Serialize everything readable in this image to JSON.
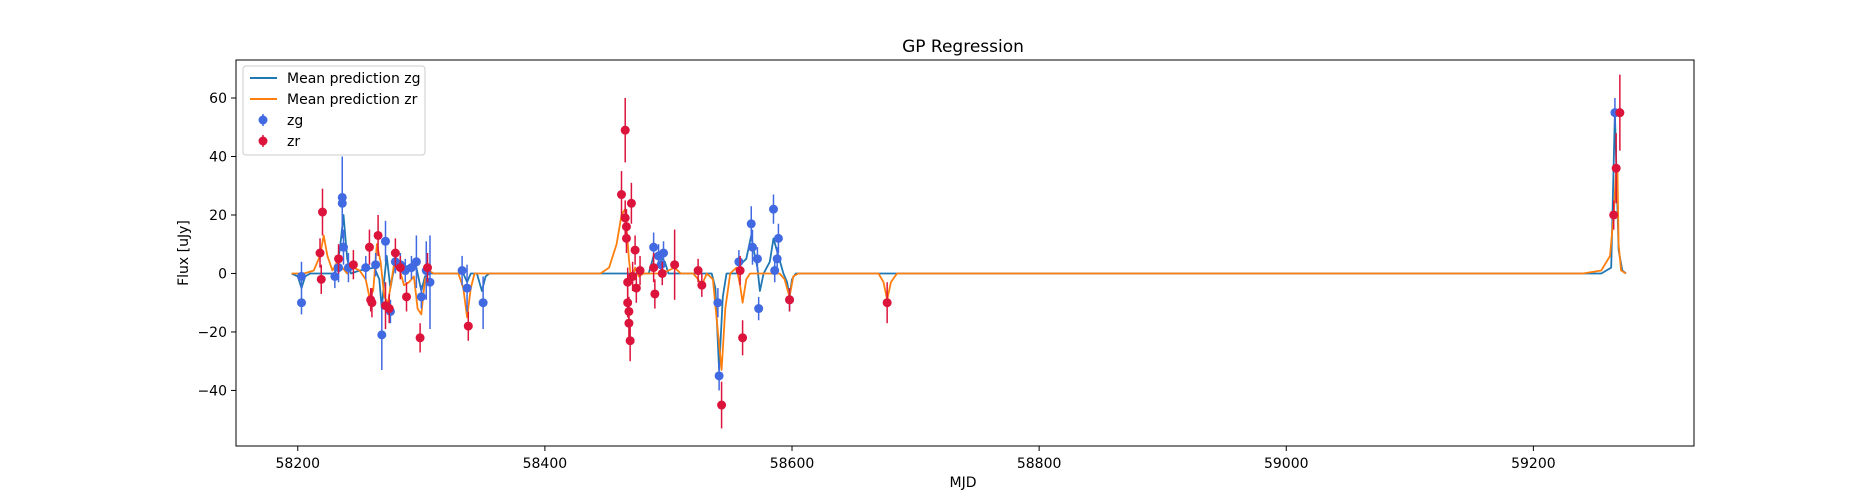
{
  "chart_data": {
    "type": "scatter",
    "title": "GP Regression",
    "xlabel": "MJD",
    "ylabel": "Flux [uJy]",
    "xlim": [
      58150,
      59330
    ],
    "ylim": [
      -59,
      73
    ],
    "xticks": [
      58200,
      58400,
      58600,
      58800,
      59000,
      59200
    ],
    "yticks": [
      -40,
      -20,
      0,
      20,
      40,
      60
    ],
    "grid": false,
    "legend_position": "top-left",
    "colors": {
      "zg_points": "#4169e1",
      "zr_points": "#dc143c",
      "zg_line": "#1f77b4",
      "zr_line": "#ff7f0e"
    },
    "legend": [
      {
        "label": "Mean prediction zg",
        "kind": "line",
        "color": "#1f77b4"
      },
      {
        "label": "Mean prediction zr",
        "kind": "line",
        "color": "#ff7f0e"
      },
      {
        "label": "zg",
        "kind": "marker",
        "color": "#4169e1"
      },
      {
        "label": "zr",
        "kind": "marker",
        "color": "#dc143c"
      }
    ],
    "series": [
      {
        "name": "zg",
        "color": "#4169e1",
        "points": [
          {
            "x": 58203,
            "y": -1,
            "err": 5
          },
          {
            "x": 58203,
            "y": -10,
            "err": 4
          },
          {
            "x": 58230,
            "y": -1,
            "err": 4
          },
          {
            "x": 58233,
            "y": 2,
            "err": 5
          },
          {
            "x": 58236,
            "y": 26,
            "err": 14
          },
          {
            "x": 58236,
            "y": 24,
            "err": 10
          },
          {
            "x": 58237,
            "y": 9,
            "err": 6
          },
          {
            "x": 58241,
            "y": 2,
            "err": 5
          },
          {
            "x": 58255,
            "y": 2,
            "err": 4
          },
          {
            "x": 58263,
            "y": 3,
            "err": 4
          },
          {
            "x": 58268,
            "y": -21,
            "err": 12
          },
          {
            "x": 58271,
            "y": 11,
            "err": 7
          },
          {
            "x": 58275,
            "y": -13,
            "err": 4
          },
          {
            "x": 58279,
            "y": 4,
            "err": 4
          },
          {
            "x": 58283,
            "y": 3,
            "err": 4
          },
          {
            "x": 58287,
            "y": 1,
            "err": 4
          },
          {
            "x": 58292,
            "y": 2,
            "err": 4
          },
          {
            "x": 58296,
            "y": 4,
            "err": 9
          },
          {
            "x": 58300,
            "y": -8,
            "err": 4
          },
          {
            "x": 58304,
            "y": 1,
            "err": 10
          },
          {
            "x": 58307,
            "y": -3,
            "err": 16
          },
          {
            "x": 58333,
            "y": 1,
            "err": 5
          },
          {
            "x": 58337,
            "y": -5,
            "err": 8
          },
          {
            "x": 58350,
            "y": -10,
            "err": 9
          },
          {
            "x": 58488,
            "y": 9,
            "err": 5
          },
          {
            "x": 58492,
            "y": 6,
            "err": 4
          },
          {
            "x": 58494,
            "y": 3,
            "err": 4
          },
          {
            "x": 58496,
            "y": 7,
            "err": 4
          },
          {
            "x": 58540,
            "y": -10,
            "err": 5
          },
          {
            "x": 58541,
            "y": -35,
            "err": 5
          },
          {
            "x": 58557,
            "y": 4,
            "err": 4
          },
          {
            "x": 58567,
            "y": 17,
            "err": 6
          },
          {
            "x": 58568,
            "y": 9,
            "err": 6
          },
          {
            "x": 58572,
            "y": 5,
            "err": 4
          },
          {
            "x": 58573,
            "y": -12,
            "err": 4
          },
          {
            "x": 58585,
            "y": 22,
            "err": 5
          },
          {
            "x": 58586,
            "y": 1,
            "err": 4
          },
          {
            "x": 58588,
            "y": 5,
            "err": 4
          },
          {
            "x": 58589,
            "y": 12,
            "err": 5
          },
          {
            "x": 58598,
            "y": -9,
            "err": 4
          },
          {
            "x": 59266,
            "y": 55,
            "err": 5
          }
        ]
      },
      {
        "name": "zr",
        "color": "#dc143c",
        "points": [
          {
            "x": 58218,
            "y": 7,
            "err": 5
          },
          {
            "x": 58219,
            "y": -2,
            "err": 5
          },
          {
            "x": 58220,
            "y": 21,
            "err": 8
          },
          {
            "x": 58233,
            "y": 5,
            "err": 5
          },
          {
            "x": 58245,
            "y": 3,
            "err": 5
          },
          {
            "x": 58258,
            "y": 9,
            "err": 6
          },
          {
            "x": 58259,
            "y": -9,
            "err": 4
          },
          {
            "x": 58260,
            "y": -10,
            "err": 5
          },
          {
            "x": 58265,
            "y": 13,
            "err": 7
          },
          {
            "x": 58271,
            "y": -11,
            "err": 8
          },
          {
            "x": 58274,
            "y": -12,
            "err": 5
          },
          {
            "x": 58279,
            "y": 7,
            "err": 5
          },
          {
            "x": 58283,
            "y": 2,
            "err": 4
          },
          {
            "x": 58288,
            "y": -8,
            "err": 5
          },
          {
            "x": 58299,
            "y": -22,
            "err": 5
          },
          {
            "x": 58305,
            "y": 2,
            "err": 5
          },
          {
            "x": 58338,
            "y": -18,
            "err": 5
          },
          {
            "x": 58462,
            "y": 27,
            "err": 8
          },
          {
            "x": 58465,
            "y": 49,
            "err": 11
          },
          {
            "x": 58465,
            "y": 19,
            "err": 6
          },
          {
            "x": 58466,
            "y": 16,
            "err": 6
          },
          {
            "x": 58466,
            "y": 12,
            "err": 5
          },
          {
            "x": 58467,
            "y": -3,
            "err": 5
          },
          {
            "x": 58467,
            "y": -10,
            "err": 5
          },
          {
            "x": 58468,
            "y": -13,
            "err": 5
          },
          {
            "x": 58468,
            "y": -17,
            "err": 5
          },
          {
            "x": 58469,
            "y": -23,
            "err": 7
          },
          {
            "x": 58470,
            "y": 24,
            "err": 7
          },
          {
            "x": 58471,
            "y": -1,
            "err": 5
          },
          {
            "x": 58473,
            "y": 8,
            "err": 5
          },
          {
            "x": 58474,
            "y": -5,
            "err": 5
          },
          {
            "x": 58477,
            "y": 1,
            "err": 5
          },
          {
            "x": 58488,
            "y": 2,
            "err": 5
          },
          {
            "x": 58489,
            "y": -7,
            "err": 5
          },
          {
            "x": 58495,
            "y": 0,
            "err": 4
          },
          {
            "x": 58505,
            "y": 3,
            "err": 12
          },
          {
            "x": 58524,
            "y": 1,
            "err": 4
          },
          {
            "x": 58527,
            "y": -4,
            "err": 4
          },
          {
            "x": 58543,
            "y": -45,
            "err": 8
          },
          {
            "x": 58558,
            "y": 1,
            "err": 5
          },
          {
            "x": 58560,
            "y": -22,
            "err": 6
          },
          {
            "x": 58598,
            "y": -9,
            "err": 4
          },
          {
            "x": 58677,
            "y": -10,
            "err": 7
          },
          {
            "x": 59265,
            "y": 20,
            "err": 5
          },
          {
            "x": 59267,
            "y": 36,
            "err": 12
          },
          {
            "x": 59270,
            "y": 55,
            "err": 13
          }
        ]
      }
    ],
    "mean_prediction": [
      {
        "name": "Mean prediction zg",
        "color": "#1f77b4",
        "points": [
          [
            58195,
            0
          ],
          [
            58200,
            -1
          ],
          [
            58203,
            -5
          ],
          [
            58206,
            -1
          ],
          [
            58210,
            0
          ],
          [
            58225,
            0
          ],
          [
            58230,
            0
          ],
          [
            58234,
            8
          ],
          [
            58237,
            20
          ],
          [
            58240,
            5
          ],
          [
            58243,
            0
          ],
          [
            58250,
            1
          ],
          [
            58262,
            2
          ],
          [
            58266,
            -2
          ],
          [
            58268,
            -12
          ],
          [
            58270,
            -2
          ],
          [
            58272,
            6
          ],
          [
            58275,
            -5
          ],
          [
            58278,
            2
          ],
          [
            58285,
            2
          ],
          [
            58292,
            3
          ],
          [
            58296,
            2
          ],
          [
            58300,
            -6
          ],
          [
            58303,
            -1
          ],
          [
            58307,
            0
          ],
          [
            58330,
            0
          ],
          [
            58334,
            0
          ],
          [
            58337,
            -3
          ],
          [
            58340,
            0
          ],
          [
            58345,
            0
          ],
          [
            58349,
            -6
          ],
          [
            58352,
            -1
          ],
          [
            58355,
            0
          ],
          [
            58484,
            0
          ],
          [
            58488,
            6
          ],
          [
            58493,
            6
          ],
          [
            58497,
            4
          ],
          [
            58500,
            0
          ],
          [
            58535,
            0
          ],
          [
            58538,
            -5
          ],
          [
            58541,
            -33
          ],
          [
            58544,
            -8
          ],
          [
            58547,
            0
          ],
          [
            58555,
            0
          ],
          [
            58558,
            3
          ],
          [
            58563,
            5
          ],
          [
            58567,
            13
          ],
          [
            58569,
            8
          ],
          [
            58572,
            2
          ],
          [
            58574,
            -6
          ],
          [
            58577,
            0
          ],
          [
            58582,
            4
          ],
          [
            58585,
            12
          ],
          [
            58589,
            6
          ],
          [
            58593,
            0
          ],
          [
            58596,
            -3
          ],
          [
            58598,
            -8
          ],
          [
            58600,
            -2
          ],
          [
            58603,
            0
          ],
          [
            59255,
            0
          ],
          [
            59263,
            2
          ],
          [
            59266,
            55
          ],
          [
            59269,
            8
          ],
          [
            59272,
            1
          ],
          [
            59275,
            0
          ]
        ]
      },
      {
        "name": "Mean prediction zr",
        "color": "#ff7f0e",
        "points": [
          [
            58195,
            0
          ],
          [
            58205,
            0
          ],
          [
            58213,
            1
          ],
          [
            58218,
            6
          ],
          [
            58221,
            13
          ],
          [
            58224,
            6
          ],
          [
            58228,
            1
          ],
          [
            58232,
            4
          ],
          [
            58236,
            2
          ],
          [
            58240,
            0
          ],
          [
            58245,
            2
          ],
          [
            58250,
            1
          ],
          [
            58255,
            -2
          ],
          [
            58258,
            -8
          ],
          [
            58261,
            -6
          ],
          [
            58264,
            10
          ],
          [
            58267,
            4
          ],
          [
            58270,
            -8
          ],
          [
            58273,
            -10
          ],
          [
            58276,
            -2
          ],
          [
            58279,
            6
          ],
          [
            58282,
            2
          ],
          [
            58286,
            -4
          ],
          [
            58290,
            -3
          ],
          [
            58294,
            -1
          ],
          [
            58297,
            -12
          ],
          [
            58300,
            -14
          ],
          [
            58303,
            -2
          ],
          [
            58306,
            1
          ],
          [
            58310,
            0
          ],
          [
            58330,
            0
          ],
          [
            58334,
            -5
          ],
          [
            58337,
            -15
          ],
          [
            58340,
            -5
          ],
          [
            58343,
            0
          ],
          [
            58445,
            0
          ],
          [
            58452,
            2
          ],
          [
            58458,
            10
          ],
          [
            58462,
            20
          ],
          [
            58465,
            22
          ],
          [
            58468,
            5
          ],
          [
            58470,
            -3
          ],
          [
            58473,
            2
          ],
          [
            58476,
            -1
          ],
          [
            58480,
            0
          ],
          [
            58490,
            0
          ],
          [
            58495,
            0
          ],
          [
            58500,
            1
          ],
          [
            58505,
            2
          ],
          [
            58510,
            0
          ],
          [
            58520,
            0
          ],
          [
            58524,
            -2
          ],
          [
            58527,
            -4
          ],
          [
            58531,
            0
          ],
          [
            58536,
            -2
          ],
          [
            58540,
            -20
          ],
          [
            58543,
            -33
          ],
          [
            58546,
            -12
          ],
          [
            58550,
            0
          ],
          [
            58555,
            2
          ],
          [
            58558,
            -4
          ],
          [
            58560,
            -10
          ],
          [
            58563,
            -2
          ],
          [
            58566,
            0
          ],
          [
            58590,
            0
          ],
          [
            58594,
            -2
          ],
          [
            58598,
            -8
          ],
          [
            58601,
            -1
          ],
          [
            58605,
            0
          ],
          [
            58670,
            0
          ],
          [
            58674,
            -3
          ],
          [
            58677,
            -9
          ],
          [
            58680,
            -3
          ],
          [
            58685,
            0
          ],
          [
            59240,
            0
          ],
          [
            59255,
            1
          ],
          [
            59262,
            6
          ],
          [
            59265,
            20
          ],
          [
            59267,
            36
          ],
          [
            59268,
            37
          ],
          [
            59269,
            10
          ],
          [
            59271,
            1
          ],
          [
            59275,
            0
          ]
        ]
      }
    ]
  }
}
